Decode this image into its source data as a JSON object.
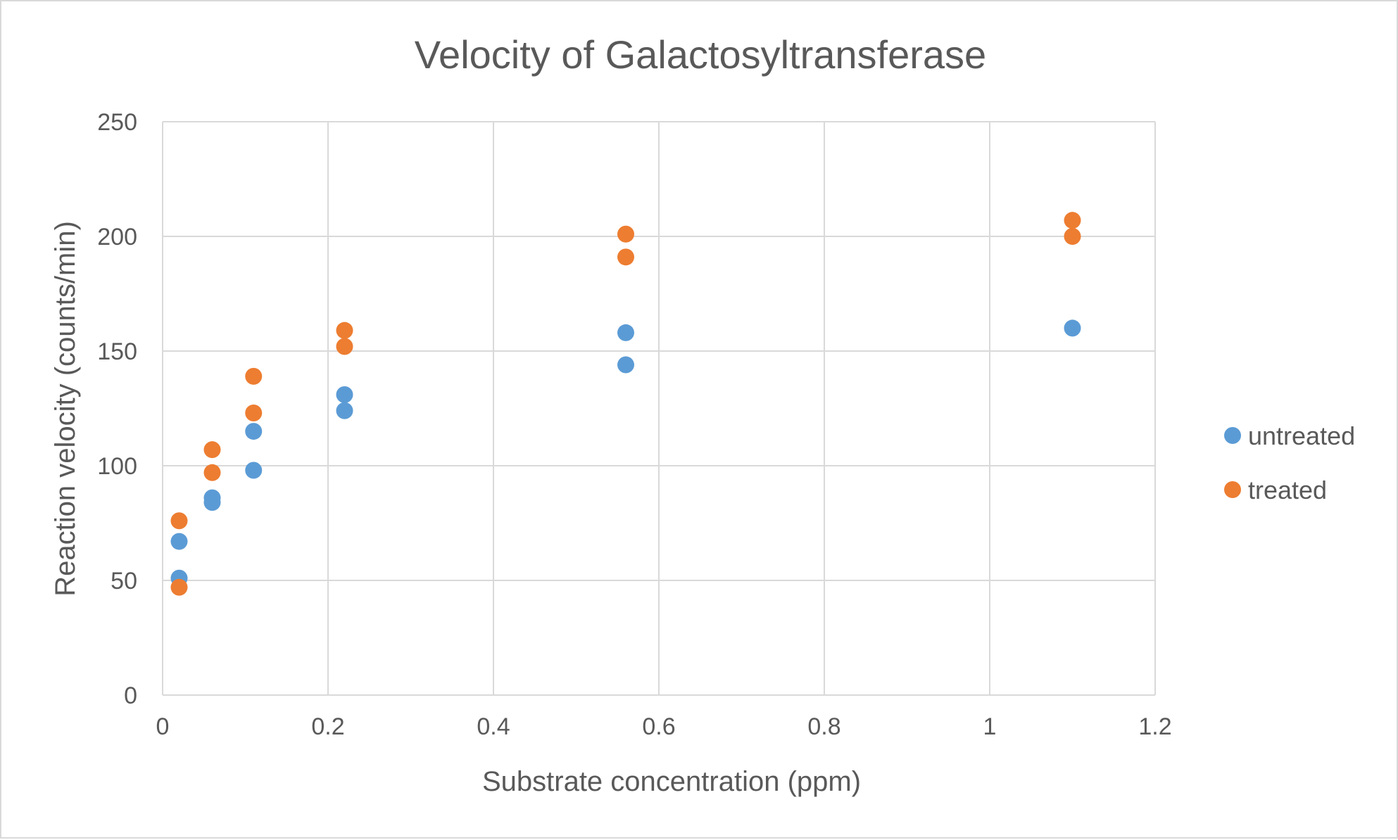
{
  "chart_data": {
    "type": "scatter",
    "title": "Velocity of Galactosyltransferase",
    "xlabel": "Substrate concentration (ppm)",
    "ylabel": "Reaction velocity (counts/min)",
    "xlim": [
      0,
      1.2
    ],
    "ylim": [
      0,
      250
    ],
    "x_ticks": [
      "0",
      "0.2",
      "0.4",
      "0.6",
      "0.8",
      "1",
      "1.2"
    ],
    "y_ticks": [
      "0",
      "50",
      "100",
      "150",
      "200",
      "250"
    ],
    "grid": true,
    "legend_position": "right",
    "series": [
      {
        "name": "untreated",
        "color": "#5b9bd5",
        "points": [
          {
            "x": 0.02,
            "y": 67
          },
          {
            "x": 0.02,
            "y": 51
          },
          {
            "x": 0.06,
            "y": 86
          },
          {
            "x": 0.06,
            "y": 84
          },
          {
            "x": 0.11,
            "y": 115
          },
          {
            "x": 0.11,
            "y": 98
          },
          {
            "x": 0.22,
            "y": 131
          },
          {
            "x": 0.22,
            "y": 124
          },
          {
            "x": 0.56,
            "y": 158
          },
          {
            "x": 0.56,
            "y": 144
          },
          {
            "x": 1.1,
            "y": 160
          }
        ]
      },
      {
        "name": "treated",
        "color": "#ed7d31",
        "points": [
          {
            "x": 0.02,
            "y": 76
          },
          {
            "x": 0.02,
            "y": 47
          },
          {
            "x": 0.06,
            "y": 107
          },
          {
            "x": 0.06,
            "y": 97
          },
          {
            "x": 0.11,
            "y": 139
          },
          {
            "x": 0.11,
            "y": 123
          },
          {
            "x": 0.22,
            "y": 159
          },
          {
            "x": 0.22,
            "y": 152
          },
          {
            "x": 0.56,
            "y": 201
          },
          {
            "x": 0.56,
            "y": 191
          },
          {
            "x": 1.1,
            "y": 207
          },
          {
            "x": 1.1,
            "y": 200
          }
        ]
      }
    ]
  }
}
